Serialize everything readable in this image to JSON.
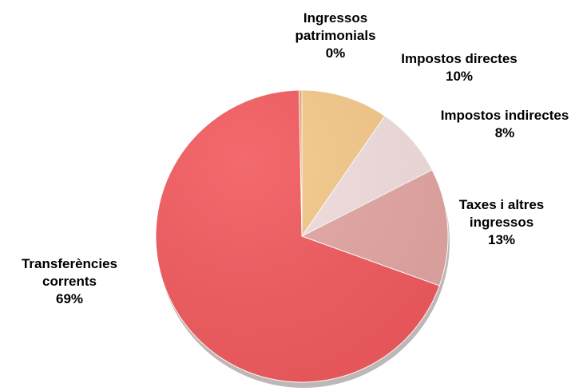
{
  "chart_data": {
    "type": "pie",
    "title": "",
    "start_angle_deg": 0,
    "direction": "clockwise",
    "slices": [
      {
        "name": "Impostos directes",
        "label_lines": [
          "Impostos directes"
        ],
        "percent_label": "10%",
        "value": 9.6,
        "color": "#f5c888"
      },
      {
        "name": "Impostos indirectes",
        "label_lines": [
          "Impostos indirectes"
        ],
        "percent_label": "8%",
        "value": 7.9,
        "color": "#f2dede"
      },
      {
        "name": "Taxes i altres ingressos",
        "label_lines": [
          "Taxes i altres",
          "ingressos"
        ],
        "percent_label": "13%",
        "value": 13.0,
        "color": "#e4a6a3"
      },
      {
        "name": "Transferències corrents",
        "label_lines": [
          "Transferències",
          "corrents"
        ],
        "percent_label": "69%",
        "value": 69.2,
        "color": "#f25a5e"
      },
      {
        "name": "Ingressos patrimonials",
        "label_lines": [
          "Ingressos",
          "patrimonials"
        ],
        "percent_label": "0%",
        "value": 0.3,
        "color": "#e8a060"
      }
    ]
  }
}
